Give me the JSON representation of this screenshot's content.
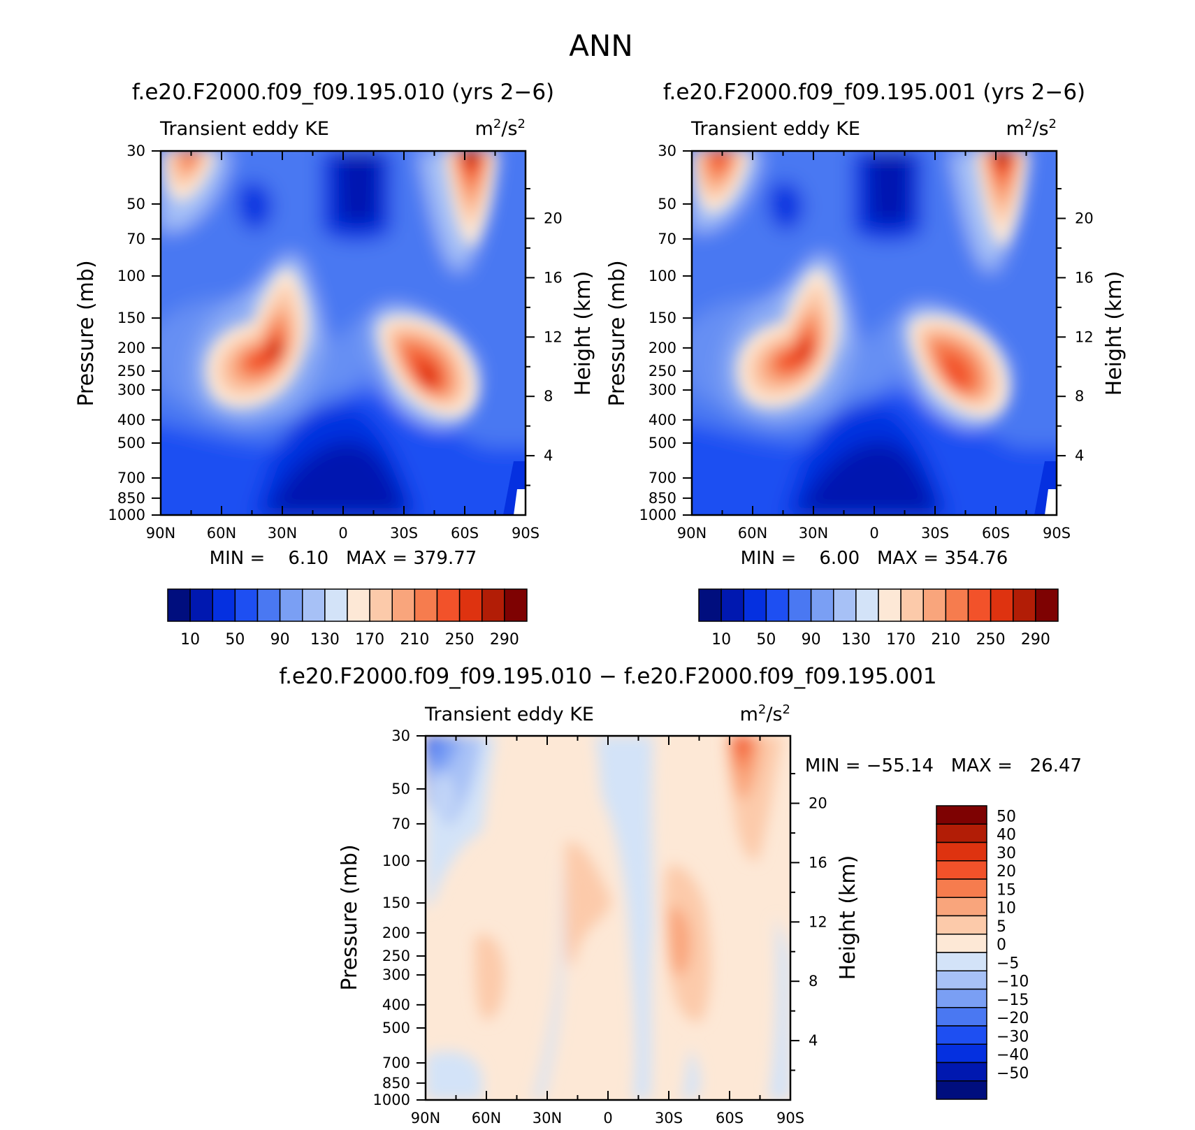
{
  "figure": {
    "title": "ANN",
    "panel_left_title": "f.e20.F2000.f09_f09.195.010 (yrs 2−6)",
    "panel_right_title": "f.e20.F2000.f09_f09.195.001 (yrs 2−6)",
    "panel_diff_title": "f.e20.F2000.f09_f09.195.010 − f.e20.F2000.f09_f09.195.001"
  },
  "chart_data": [
    {
      "type": "heatmap",
      "subtitle_left": "Transient eddy KE",
      "units_base": "m",
      "units_sup1": "2",
      "units_mid": "/s",
      "units_sup2": "2",
      "ylabel": "Pressure (mb)",
      "y2label": "Height (km)",
      "x_ticks": [
        "90N",
        "60N",
        "30N",
        "0",
        "30S",
        "60S",
        "90S"
      ],
      "y_ticks": [
        "30",
        "50",
        "70",
        "100",
        "150",
        "200",
        "250",
        "300",
        "400",
        "500",
        "700",
        "850",
        "1000"
      ],
      "y2_ticks": [
        "20",
        "16",
        "12",
        "8",
        "4"
      ],
      "stats_label": "MIN =    6.10   MAX = 379.77",
      "min": 6.1,
      "max": 379.77,
      "colorbar_labels": [
        "10",
        "50",
        "90",
        "130",
        "170",
        "210",
        "250",
        "290"
      ],
      "levels": [
        10,
        30,
        50,
        70,
        90,
        110,
        130,
        150,
        170,
        190,
        210,
        230,
        250,
        270,
        290
      ]
    },
    {
      "type": "heatmap",
      "subtitle_left": "Transient eddy KE",
      "units_base": "m",
      "units_sup1": "2",
      "units_mid": "/s",
      "units_sup2": "2",
      "ylabel": "Pressure (mb)",
      "y2label": "Height (km)",
      "x_ticks": [
        "90N",
        "60N",
        "30N",
        "0",
        "30S",
        "60S",
        "90S"
      ],
      "y_ticks": [
        "30",
        "50",
        "70",
        "100",
        "150",
        "200",
        "250",
        "300",
        "400",
        "500",
        "700",
        "850",
        "1000"
      ],
      "y2_ticks": [
        "20",
        "16",
        "12",
        "8",
        "4"
      ],
      "stats_label": "MIN =    6.00   MAX = 354.76",
      "min": 6.0,
      "max": 354.76,
      "colorbar_labels": [
        "10",
        "50",
        "90",
        "130",
        "170",
        "210",
        "250",
        "290"
      ],
      "levels": [
        10,
        30,
        50,
        70,
        90,
        110,
        130,
        150,
        170,
        190,
        210,
        230,
        250,
        270,
        290
      ]
    },
    {
      "type": "heatmap",
      "subtitle_left": "Transient eddy KE",
      "units_base": "m",
      "units_sup1": "2",
      "units_mid": "/s",
      "units_sup2": "2",
      "ylabel": "Pressure (mb)",
      "y2label": "Height (km)",
      "x_ticks": [
        "90N",
        "60N",
        "30N",
        "0",
        "30S",
        "60S",
        "90S"
      ],
      "y_ticks": [
        "30",
        "50",
        "70",
        "100",
        "150",
        "200",
        "250",
        "300",
        "400",
        "500",
        "700",
        "850",
        "1000"
      ],
      "y2_ticks": [
        "20",
        "16",
        "12",
        "8",
        "4"
      ],
      "stats_label": "MIN = −55.14   MAX =   26.47",
      "min": -55.14,
      "max": 26.47,
      "colorbar_labels": [
        "50",
        "40",
        "30",
        "20",
        "15",
        "10",
        "5",
        "0",
        "−5",
        "−10",
        "−15",
        "−20",
        "−30",
        "−40",
        "−50"
      ],
      "levels": [
        -50,
        -40,
        -30,
        -20,
        -15,
        -10,
        -5,
        0,
        5,
        10,
        15,
        20,
        30,
        40,
        50
      ]
    }
  ],
  "colors": {
    "blue_red_16": [
      "#000e7e",
      "#0018b0",
      "#0530e0",
      "#1e4ff2",
      "#4a78f2",
      "#7a9ff4",
      "#a7c1f6",
      "#d3e3f8",
      "#fde8d6",
      "#fccaaa",
      "#f9a57c",
      "#f67c4e",
      "#f2522a",
      "#de3310",
      "#b21d06",
      "#7e0202"
    ]
  }
}
